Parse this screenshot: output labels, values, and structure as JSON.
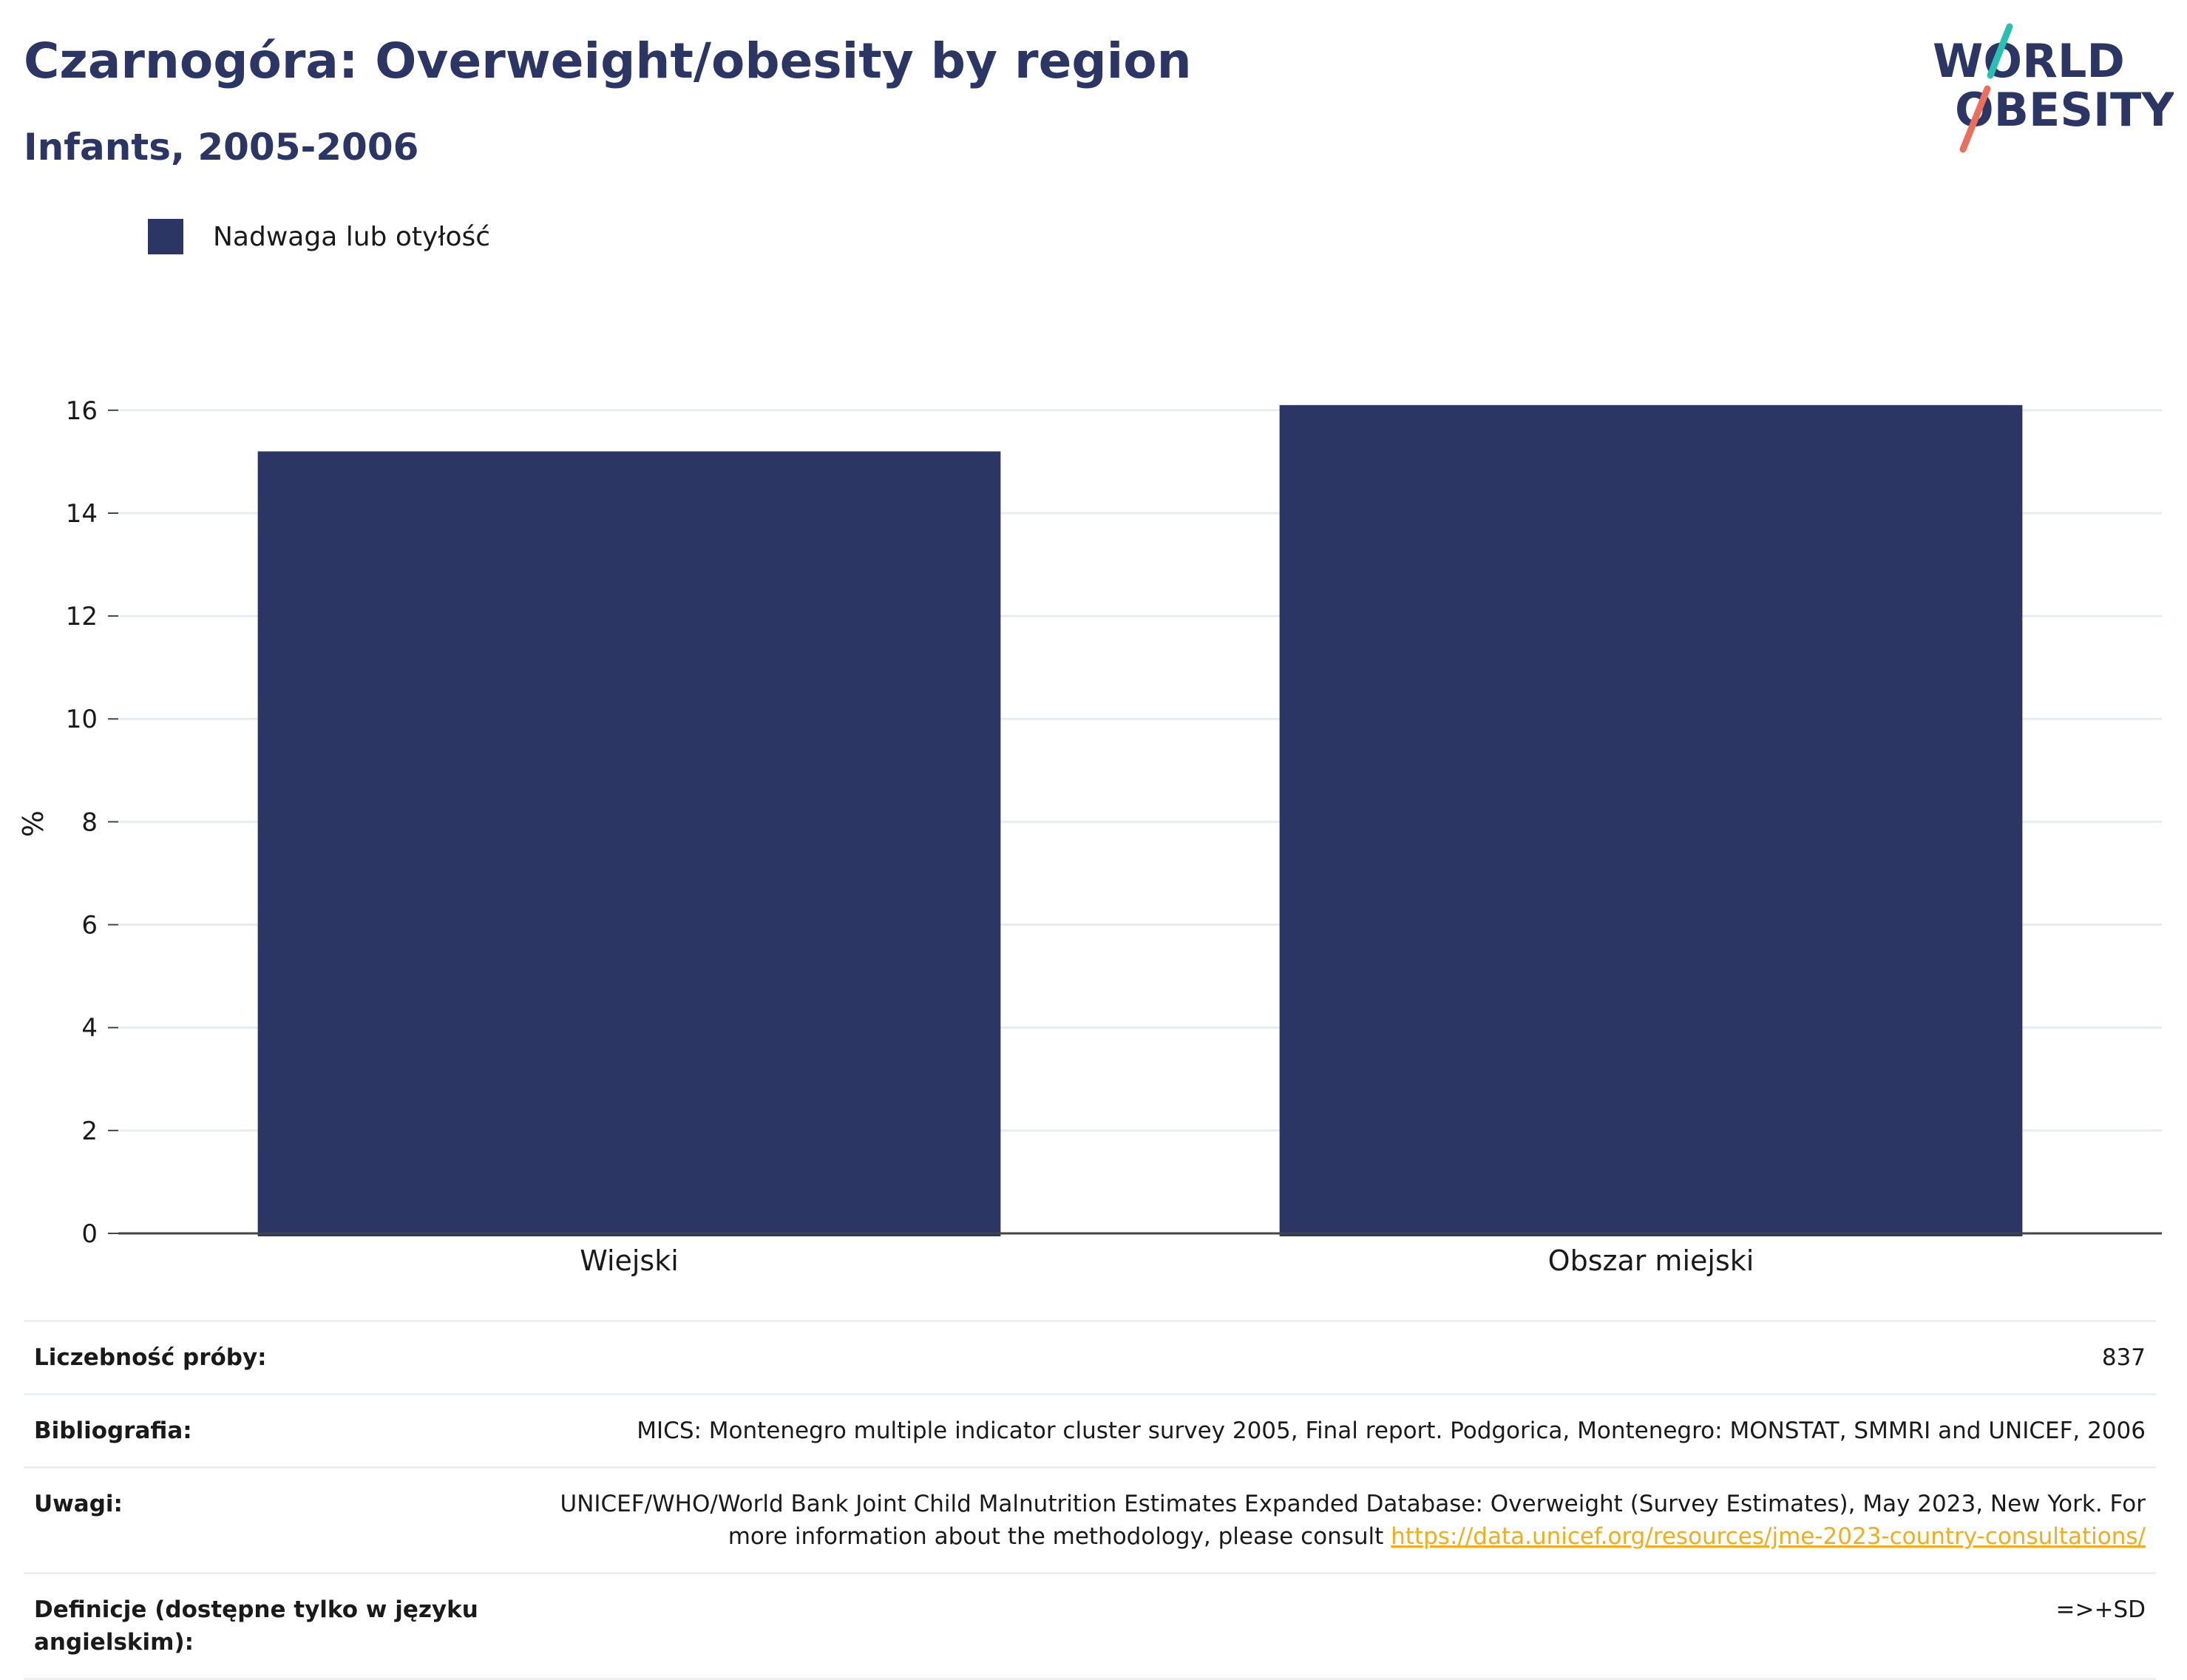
{
  "header": {
    "title": "Czarnogóra: Overweight/obesity by region",
    "subtitle": "Infants, 2005-2006"
  },
  "logo": {
    "line1": "WORLD",
    "line2": "OBESITY"
  },
  "colors": {
    "bar": "#2b3664",
    "title": "#2b3664",
    "link": "#f0ad1c",
    "logo_teal": "#2bbfb3",
    "logo_coral": "#e9705f"
  },
  "chart_data": {
    "type": "bar",
    "categories": [
      "Wiejski",
      "Obszar miejski"
    ],
    "series": [
      {
        "name": "Nadwaga lub otyłość",
        "values": [
          15.2,
          16.1
        ]
      }
    ],
    "ylabel": "%",
    "xlabel": "",
    "ylim": [
      0,
      16.5
    ],
    "yticks": [
      0,
      2,
      4,
      6,
      8,
      10,
      12,
      14,
      16
    ],
    "grid": true,
    "legend_position": "top-left"
  },
  "info": {
    "rows": [
      {
        "key": "Liczebność próby:",
        "value": "837"
      },
      {
        "key": "Bibliografia:",
        "value": "MICS: Montenegro multiple indicator cluster survey 2005, Final report. Podgorica, Montenegro: MONSTAT, SMMRI and UNICEF, 2006"
      },
      {
        "key": "Uwagi:",
        "value": "UNICEF/WHO/World Bank Joint Child Malnutrition Estimates Expanded Database: Overweight (Survey Estimates), May 2023, New York. For more information about the methodology, please consult ",
        "link": "https://data.unicef.org/resources/jme-2023-country-consultations/"
      },
      {
        "key": "Definicje (dostępne tylko w języku angielskim):",
        "value": "=>+SD"
      }
    ]
  }
}
